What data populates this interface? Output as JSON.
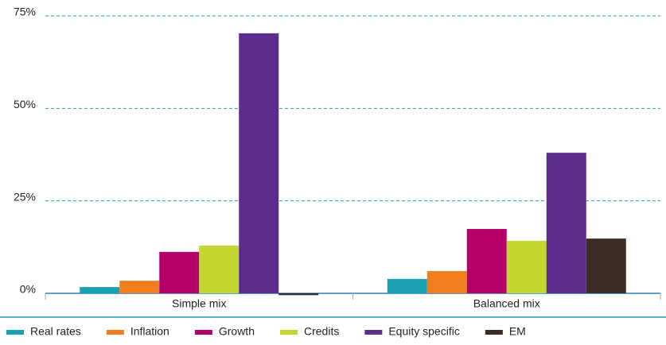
{
  "chart_data": {
    "type": "bar",
    "categories": [
      "Simple mix",
      "Balanced mix"
    ],
    "series": [
      {
        "name": "Real rates",
        "color": "#1aa0b3",
        "values": [
          1.7,
          3.9
        ]
      },
      {
        "name": "Inflation",
        "color": "#f07d1e",
        "values": [
          3.4,
          6.0
        ]
      },
      {
        "name": "Growth",
        "color": "#b5006a",
        "values": [
          11.2,
          17.4
        ]
      },
      {
        "name": "Credits",
        "color": "#c3d72e",
        "values": [
          12.9,
          14.2
        ]
      },
      {
        "name": "Equity specific",
        "color": "#5c2d8e",
        "values": [
          70.3,
          38.0
        ]
      },
      {
        "name": "EM",
        "color": "#3d2b26",
        "values": [
          -0.5,
          14.8
        ]
      }
    ],
    "ylim": [
      0,
      75
    ],
    "yticks": [
      {
        "value": 0,
        "label": "0%"
      },
      {
        "value": 25,
        "label": "25%"
      },
      {
        "value": 50,
        "label": "50%"
      },
      {
        "value": 75,
        "label": "75%"
      }
    ],
    "grid": true
  }
}
